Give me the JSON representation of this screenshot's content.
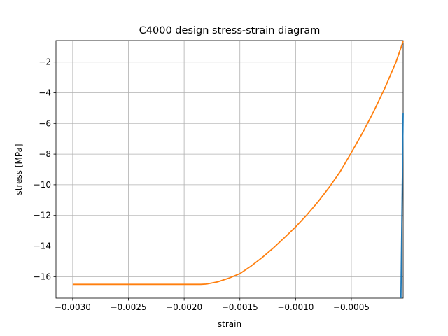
{
  "chart_data": {
    "type": "line",
    "title": "C4000 design stress-strain diagram",
    "xlabel": "strain",
    "ylabel": "stress [MPa]",
    "xlim": [
      -0.00315,
      -3.5e-05
    ],
    "ylim": [
      -17.4,
      -0.6
    ],
    "grid": true,
    "x_ticks": [
      -0.003,
      -0.0025,
      -0.002,
      -0.0015,
      -0.001,
      -0.0005
    ],
    "x_tick_labels": [
      "−0.0030",
      "−0.0025",
      "−0.0020",
      "−0.0015",
      "−0.0010",
      "−0.0005"
    ],
    "y_ticks": [
      -16,
      -14,
      -12,
      -10,
      -8,
      -6,
      -4,
      -2
    ],
    "y_tick_labels": [
      "−16",
      "−14",
      "−12",
      "−10",
      "−8",
      "−6",
      "−4",
      "−2"
    ],
    "series": [
      {
        "color": "#1f77b4",
        "x": [
          -5.5e-05,
          -3.5e-05
        ],
        "y": [
          -17.4,
          -5.3
        ]
      },
      {
        "color": "#ff7f0e",
        "x": [
          -0.003,
          -0.0025,
          -0.002,
          -0.00185,
          -0.0018,
          -0.0017,
          -0.0016,
          -0.0015,
          -0.0014,
          -0.0013,
          -0.0012,
          -0.0011,
          -0.001,
          -0.0009,
          -0.0008,
          -0.0007,
          -0.0006,
          -0.0005,
          -0.0004,
          -0.0003,
          -0.0002,
          -0.0001,
          -3.5e-05
        ],
        "y": [
          -16.5,
          -16.5,
          -16.5,
          -16.5,
          -16.48,
          -16.34,
          -16.1,
          -15.8,
          -15.31,
          -14.75,
          -14.13,
          -13.45,
          -12.75,
          -11.97,
          -11.12,
          -10.18,
          -9.14,
          -7.9,
          -6.62,
          -5.23,
          -3.71,
          -2.02,
          -0.65
        ]
      }
    ]
  }
}
